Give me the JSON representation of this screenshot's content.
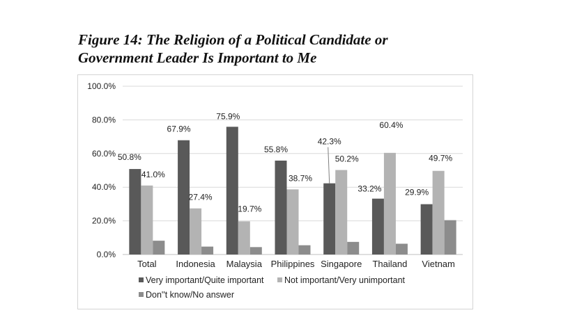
{
  "title_line1": "Figure 14: The Religion of a Political Candidate or",
  "title_line2": "Government Leader Is Important to Me",
  "chart_data": {
    "type": "bar",
    "categories": [
      "Total",
      "Indonesia",
      "Malaysia",
      "Philippines",
      "Singapore",
      "Thailand",
      "Vietnam"
    ],
    "series": [
      {
        "name": "Very important/Quite important",
        "color": "#595959",
        "values": [
          50.8,
          67.9,
          75.9,
          55.8,
          42.3,
          33.2,
          29.9
        ],
        "labels": [
          "50.8%",
          "67.9%",
          "75.9%",
          "55.8%",
          "42.3%",
          "33.2%",
          "29.9%"
        ]
      },
      {
        "name": "Not important/Very unimportant",
        "color": "#b3b3b3",
        "values": [
          41.0,
          27.4,
          19.7,
          38.7,
          50.2,
          60.4,
          49.7
        ],
        "labels": [
          "41.0%",
          "27.4%",
          "19.7%",
          "38.7%",
          "50.2%",
          "60.4%",
          "49.7%"
        ]
      },
      {
        "name": "Don''t know/No answer",
        "color": "#8c8c8c",
        "values": [
          8.2,
          4.7,
          4.4,
          5.5,
          7.5,
          6.4,
          20.4
        ],
        "labels": null
      }
    ],
    "ylim": [
      0,
      100
    ],
    "yticks": [
      "0.0%",
      "20.0%",
      "40.0%",
      "60.0%",
      "80.0%",
      "100.0%"
    ],
    "ytick_values": [
      0,
      20,
      40,
      60,
      80,
      100
    ],
    "grid": true,
    "legend": "bottom"
  }
}
